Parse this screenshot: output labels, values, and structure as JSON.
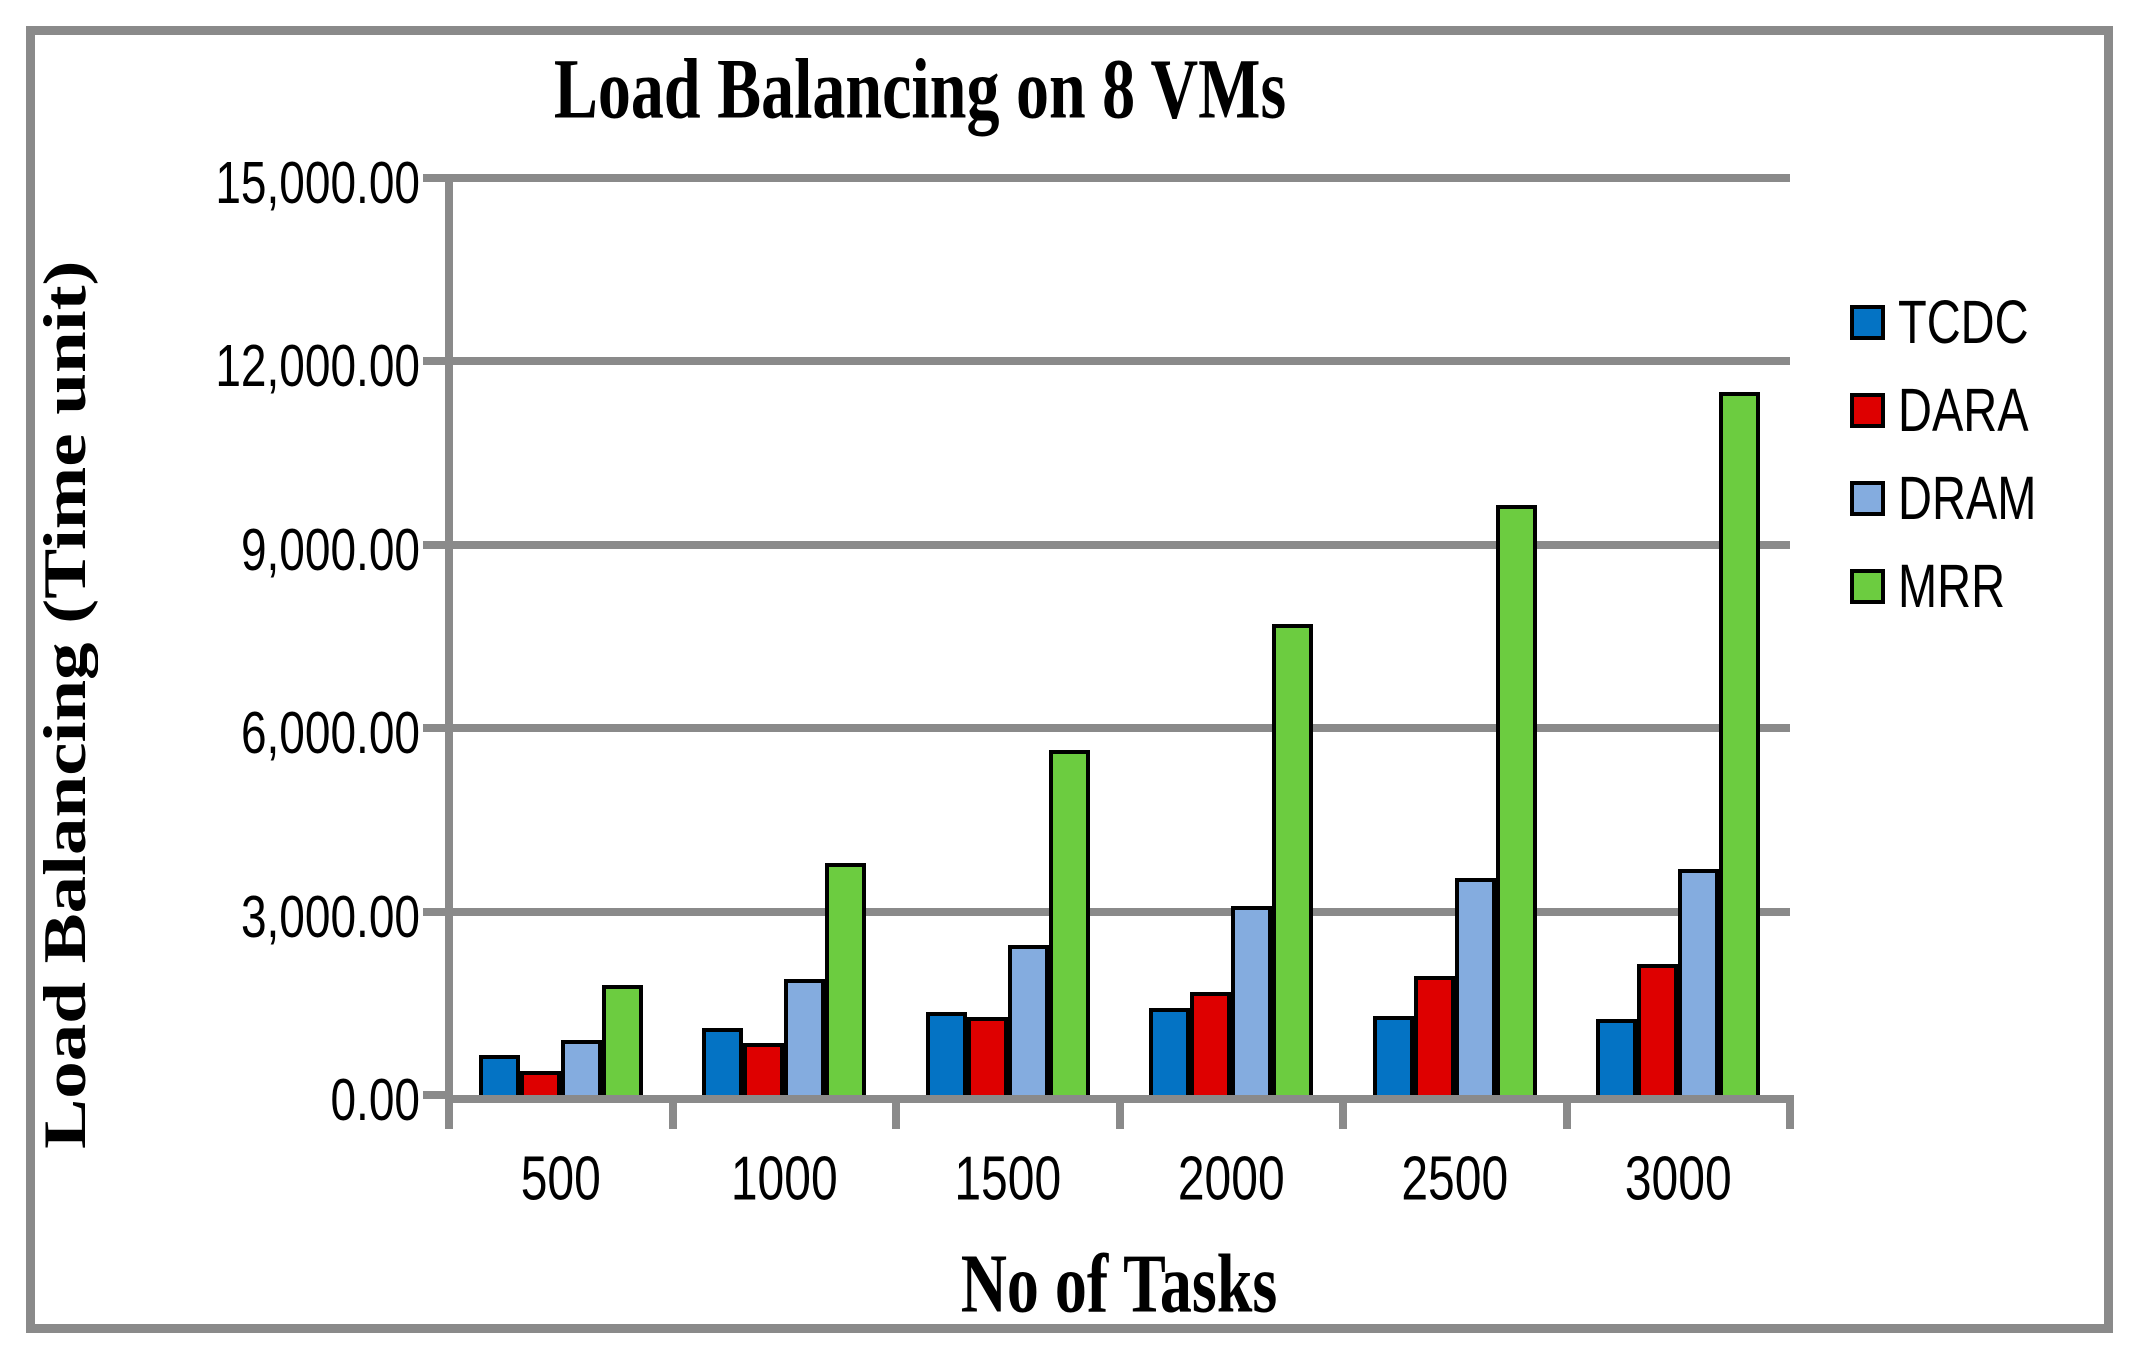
{
  "chart_data": {
    "type": "bar",
    "title": "Load Balancing on 8 VMs",
    "xlabel": "No of Tasks",
    "ylabel": "Load Balancing (Time unit)",
    "categories": [
      "500",
      "1000",
      "1500",
      "2000",
      "2500",
      "3000"
    ],
    "series": [
      {
        "name": "TCDC",
        "color": "#0473C4",
        "values": [
          650,
          1100,
          1350,
          1430,
          1300,
          1250
        ]
      },
      {
        "name": "DARA",
        "color": "#DE0000",
        "values": [
          400,
          850,
          1280,
          1680,
          1950,
          2150
        ]
      },
      {
        "name": "DRAM",
        "color": "#84ACDF",
        "values": [
          900,
          1900,
          2450,
          3100,
          3550,
          3700
        ]
      },
      {
        "name": "MRR",
        "color": "#6CCC40",
        "values": [
          1800,
          3800,
          5650,
          7700,
          9650,
          11500
        ]
      }
    ],
    "ylim": [
      0,
      15000
    ],
    "ytick_step": 3000,
    "ytick_labels": [
      "0.00",
      "3,000.00",
      "6,000.00",
      "9,000.00",
      "12,000.00",
      "15,000.00"
    ],
    "grid": "horizontal-only",
    "legend_position": "right"
  },
  "colors": {
    "axis": "#8A8A8A",
    "frame": "#8A8A8A",
    "bar_border": "#000000",
    "background": "#FFFFFF",
    "text": "#000000"
  }
}
